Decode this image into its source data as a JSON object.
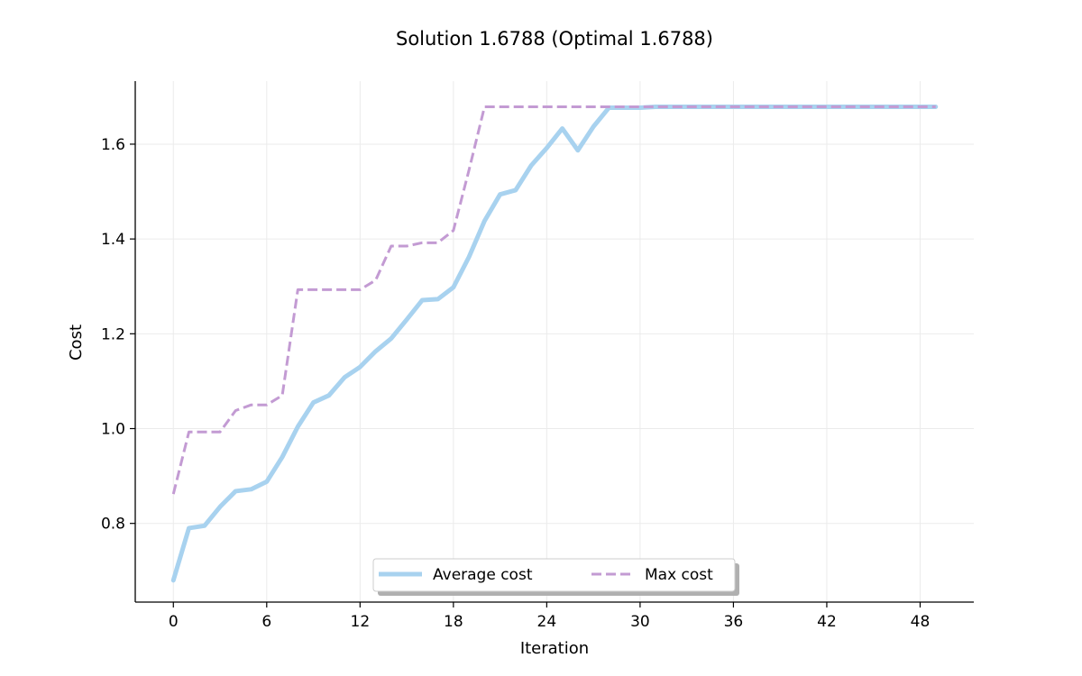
{
  "chart_data": {
    "type": "line",
    "title": "Solution 1.6788 (Optimal 1.6788)",
    "xlabel": "Iteration",
    "ylabel": "Cost",
    "xlim": [
      -2.45,
      51.45
    ],
    "ylim": [
      0.634,
      1.733
    ],
    "xticks": [
      0,
      6,
      12,
      18,
      24,
      30,
      36,
      42,
      48
    ],
    "yticks": [
      0.8,
      1.0,
      1.2,
      1.4,
      1.6
    ],
    "ytick_labels": [
      "0.8",
      "1.0",
      "1.2",
      "1.4",
      "1.6"
    ],
    "grid": true,
    "legend_position": "lower center",
    "x": [
      0,
      1,
      2,
      3,
      4,
      5,
      6,
      7,
      8,
      9,
      10,
      11,
      12,
      13,
      14,
      15,
      16,
      17,
      18,
      19,
      20,
      21,
      22,
      23,
      24,
      25,
      26,
      27,
      28,
      29,
      30,
      31,
      32,
      33,
      34,
      35,
      36,
      37,
      38,
      39,
      40,
      41,
      42,
      43,
      44,
      45,
      46,
      47,
      48,
      49
    ],
    "series": [
      {
        "name": "Average cost",
        "color": "#a8d2ef",
        "style": "solid",
        "values": [
          0.68,
          0.79,
          0.795,
          0.835,
          0.868,
          0.872,
          0.888,
          0.94,
          1.004,
          1.055,
          1.07,
          1.108,
          1.13,
          1.163,
          1.19,
          1.23,
          1.271,
          1.273,
          1.298,
          1.362,
          1.438,
          1.494,
          1.503,
          1.555,
          1.592,
          1.633,
          1.587,
          1.637,
          1.677,
          1.677,
          1.677,
          1.6788,
          1.6788,
          1.6788,
          1.6788,
          1.6788,
          1.6788,
          1.6788,
          1.6788,
          1.6788,
          1.6788,
          1.6788,
          1.6788,
          1.6788,
          1.6788,
          1.6788,
          1.6788,
          1.6788,
          1.6788,
          1.6788
        ]
      },
      {
        "name": "Max cost",
        "color": "#c39bd3",
        "style": "dashed",
        "values": [
          0.862,
          0.993,
          0.993,
          0.993,
          1.038,
          1.05,
          1.05,
          1.07,
          1.293,
          1.293,
          1.293,
          1.293,
          1.293,
          1.313,
          1.385,
          1.385,
          1.392,
          1.392,
          1.418,
          1.545,
          1.6788,
          1.6788,
          1.6788,
          1.6788,
          1.6788,
          1.6788,
          1.6788,
          1.6788,
          1.6788,
          1.6788,
          1.6788,
          1.6788,
          1.6788,
          1.6788,
          1.6788,
          1.6788,
          1.6788,
          1.6788,
          1.6788,
          1.6788,
          1.6788,
          1.6788,
          1.6788,
          1.6788,
          1.6788,
          1.6788,
          1.6788,
          1.6788,
          1.6788,
          1.6788
        ]
      }
    ]
  }
}
